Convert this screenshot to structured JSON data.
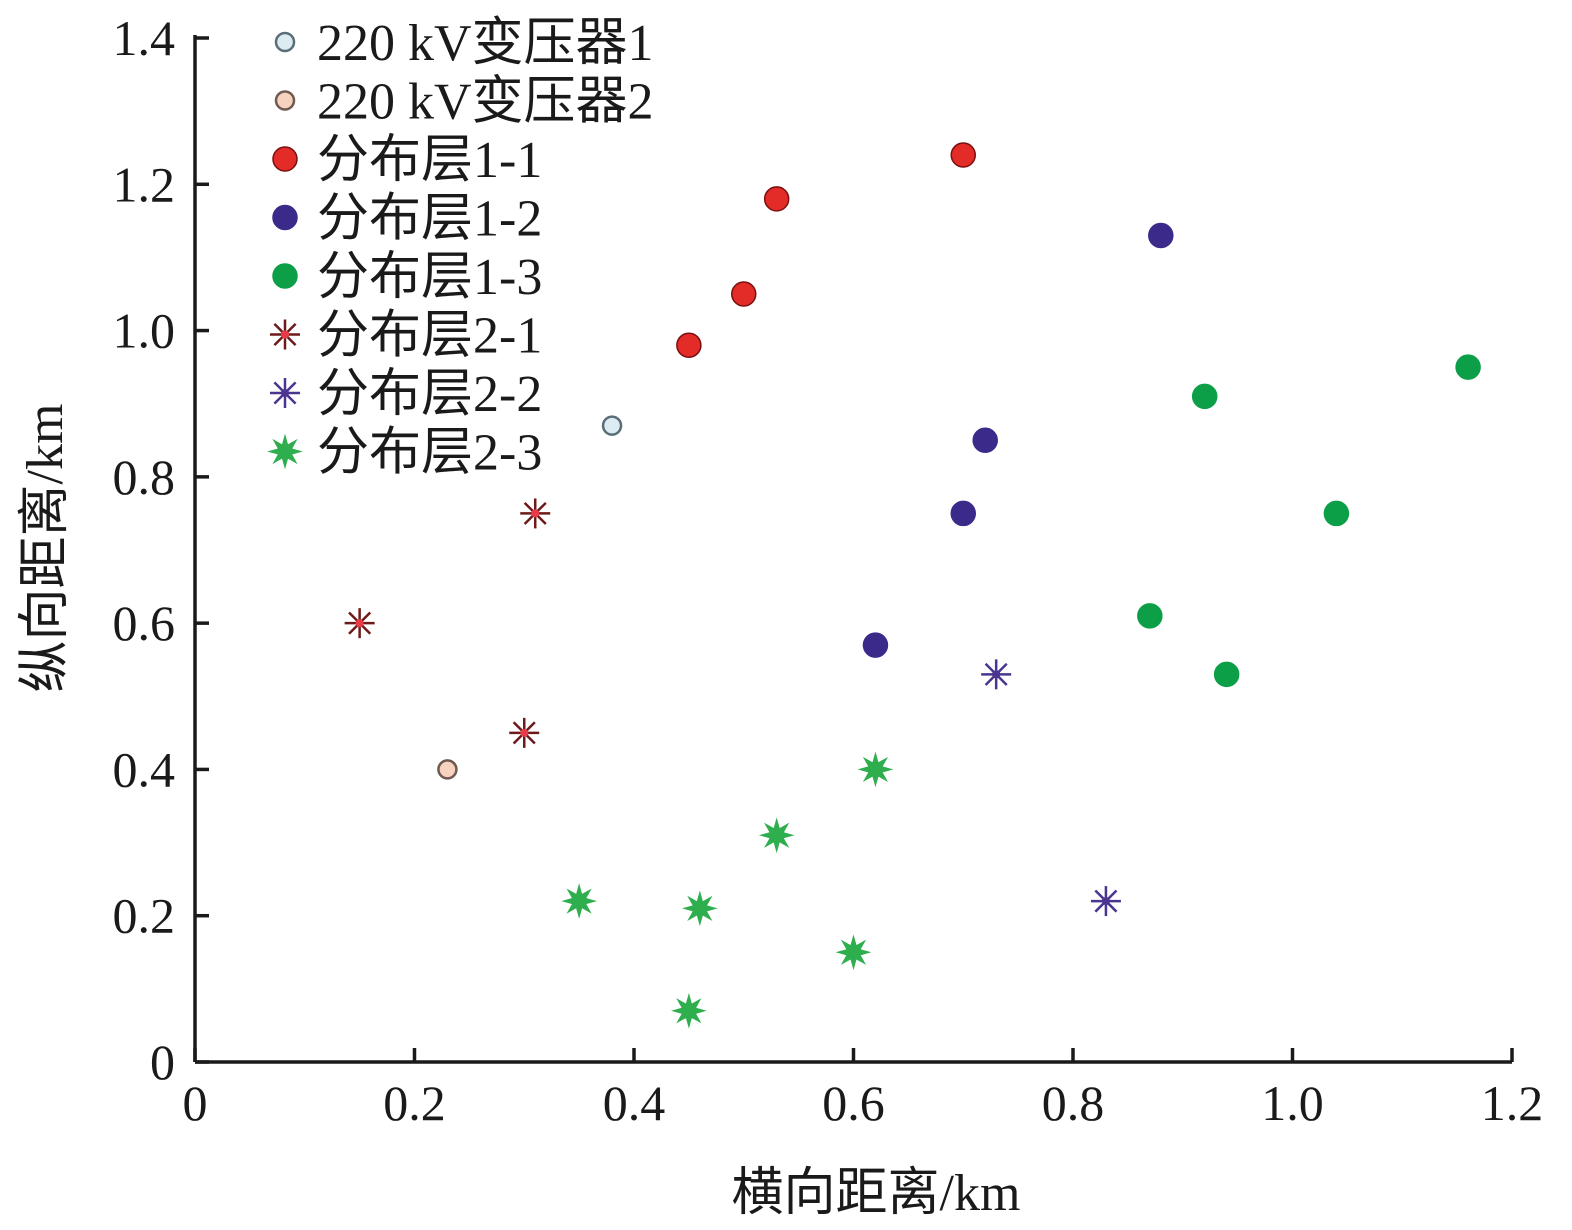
{
  "chart_data": {
    "type": "scatter",
    "xlabel": "横向距离/km",
    "ylabel": "纵向距离/km",
    "xlim": [
      0,
      1.2
    ],
    "ylim": [
      0,
      1.4
    ],
    "xticks": [
      "0",
      "0.2",
      "0.4",
      "0.6",
      "0.8",
      "1.0",
      "1.2"
    ],
    "yticks": [
      "0",
      "0.2",
      "0.4",
      "0.6",
      "0.8",
      "1.0",
      "1.2",
      "1.4"
    ],
    "grid": false,
    "legend_position": "top-left",
    "series": [
      {
        "name": "220 kV变压器1",
        "marker": "circle-small",
        "color": "#dcecf2",
        "stroke": "#5a6e78",
        "points": [
          [
            0.38,
            0.87
          ]
        ]
      },
      {
        "name": "220 kV变压器2",
        "marker": "circle-small",
        "color": "#f6d2bf",
        "stroke": "#6e5a50",
        "points": [
          [
            0.23,
            0.4
          ]
        ]
      },
      {
        "name": "分布层1-1",
        "marker": "circle",
        "color": "#e32b28",
        "stroke": "#7a1010",
        "points": [
          [
            0.7,
            1.24
          ],
          [
            0.53,
            1.18
          ],
          [
            0.5,
            1.05
          ],
          [
            0.45,
            0.98
          ]
        ]
      },
      {
        "name": "分布层1-2",
        "marker": "circle",
        "color": "#3b2a8a",
        "stroke": "#3b2a8a",
        "points": [
          [
            0.88,
            1.13
          ],
          [
            0.72,
            0.85
          ],
          [
            0.7,
            0.75
          ],
          [
            0.62,
            0.57
          ]
        ]
      },
      {
        "name": "分布层1-3",
        "marker": "circle",
        "color": "#0d9f48",
        "stroke": "#0d9f48",
        "points": [
          [
            1.16,
            0.95
          ],
          [
            0.92,
            0.91
          ],
          [
            1.04,
            0.75
          ],
          [
            0.87,
            0.61
          ],
          [
            0.94,
            0.53
          ]
        ]
      },
      {
        "name": "分布层2-1",
        "marker": "asterisk",
        "color": "#e83a48",
        "stroke": "#6e1a1a",
        "points": [
          [
            0.31,
            0.75
          ],
          [
            0.15,
            0.6
          ],
          [
            0.3,
            0.45
          ]
        ]
      },
      {
        "name": "分布层2-2",
        "marker": "asterisk",
        "color": "#4a3590",
        "stroke": "#4a3590",
        "points": [
          [
            0.73,
            0.53
          ],
          [
            0.83,
            0.22
          ]
        ]
      },
      {
        "name": "分布层2-3",
        "marker": "star",
        "color": "#2fae4e",
        "stroke": "#2fae4e",
        "points": [
          [
            0.62,
            0.4
          ],
          [
            0.53,
            0.31
          ],
          [
            0.35,
            0.22
          ],
          [
            0.46,
            0.21
          ],
          [
            0.6,
            0.15
          ],
          [
            0.45,
            0.07
          ]
        ]
      }
    ]
  }
}
